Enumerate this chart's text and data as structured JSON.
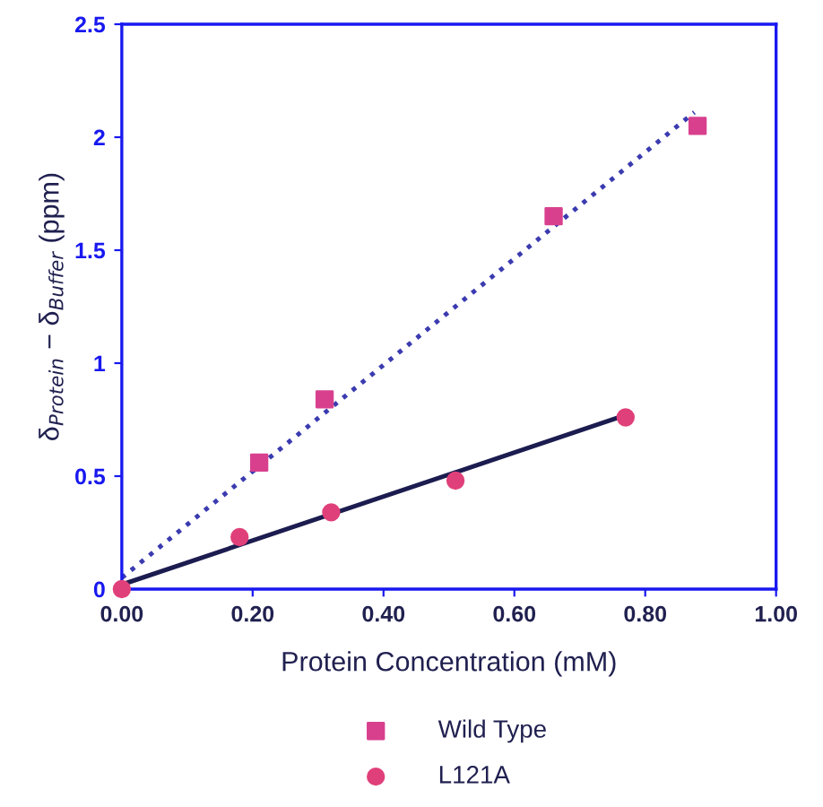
{
  "chart_data": {
    "type": "scatter",
    "xlabel": "Protein Concentration (mM)",
    "ylabel": "δ$_{Protein}$ − δ$_{Buffer}$ (ppm)",
    "series": [
      {
        "name": "Wild Type",
        "marker": "square",
        "color": "#d8408e",
        "x": [
          0.21,
          0.31,
          0.66,
          0.88
        ],
        "values": [
          0.56,
          0.84,
          1.65,
          2.05
        ]
      },
      {
        "name": "L121A",
        "marker": "circle",
        "color": "#e0407a",
        "x": [
          0.0,
          0.18,
          0.32,
          0.51,
          0.77
        ],
        "values": [
          0.0,
          0.23,
          0.34,
          0.48,
          0.76
        ]
      },
      {
        "type": "line",
        "line_style": "dotted",
        "marker": "none",
        "color": "#3b3bb0",
        "x": [
          0.0,
          0.875
        ],
        "values": [
          0.05,
          2.11
        ]
      },
      {
        "type": "line",
        "line_style": "solid",
        "marker": "none",
        "color": "#1c1c50",
        "x": [
          0.0,
          0.77
        ],
        "values": [
          0.02,
          0.77
        ]
      }
    ],
    "xlim": [
      0,
      1
    ],
    "xticks": [
      {
        "value": 0,
        "label": "0.00"
      },
      {
        "value": 0.2,
        "label": "0.20"
      },
      {
        "value": 0.4,
        "label": "0.40"
      },
      {
        "value": 0.6,
        "label": "0.60"
      },
      {
        "value": 0.8,
        "label": "0.80"
      },
      {
        "value": 1,
        "label": "1.00"
      }
    ],
    "ylim": [
      0,
      2.5
    ],
    "yticks": [
      0,
      0.5,
      1,
      1.5,
      2,
      2.5
    ],
    "grid": false,
    "legend": "bottom"
  }
}
